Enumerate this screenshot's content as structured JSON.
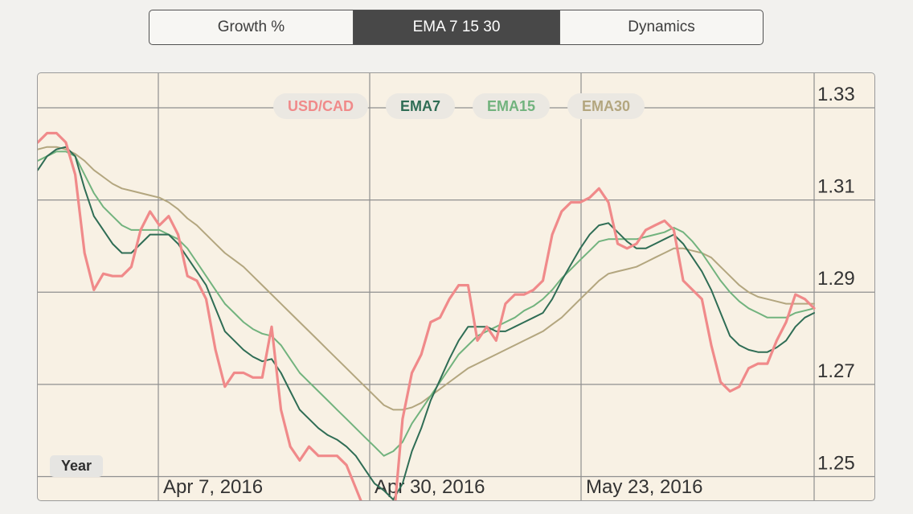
{
  "tabs": [
    {
      "label": "Growth %",
      "active": false
    },
    {
      "label": "EMA 7 15 30",
      "active": true
    },
    {
      "label": "Dynamics",
      "active": false
    }
  ],
  "period_button": "Year",
  "colors": {
    "usdcad": "#f08a8a",
    "ema7": "#2f6d55",
    "ema15": "#72b37e",
    "ema30": "#b3a67f",
    "grid": "#8f8f8f",
    "plot_bg": "#f8f1e4"
  },
  "chart_data": {
    "type": "line",
    "x_ticks": [
      "Apr 7, 2016",
      "Apr 30, 2016",
      "May 23, 2016"
    ],
    "y_ticks": [
      1.25,
      1.27,
      1.29,
      1.31,
      1.33
    ],
    "ylim": [
      1.2445,
      1.3375
    ],
    "grid": true,
    "legend_placement": "top-center",
    "series": [
      {
        "name": "USD/CAD",
        "color_key": "usdcad",
        "values": [
          1.3225,
          1.3245,
          1.3245,
          1.3225,
          1.3155,
          1.2985,
          1.2905,
          1.294,
          1.2935,
          1.2935,
          1.2955,
          1.3035,
          1.3075,
          1.3045,
          1.3065,
          1.3025,
          1.2935,
          1.2925,
          1.2885,
          1.2775,
          1.2695,
          1.2725,
          1.2725,
          1.2715,
          1.2715,
          1.2825,
          1.2645,
          1.2565,
          1.2535,
          1.2565,
          1.2545,
          1.2545,
          1.2545,
          1.2525,
          1.2475,
          1.2425,
          1.2425,
          1.2425,
          1.2395,
          1.2625,
          1.2725,
          1.2765,
          1.2835,
          1.2845,
          1.2885,
          1.2915,
          1.2915,
          1.2795,
          1.2825,
          1.2795,
          1.2875,
          1.2895,
          1.2895,
          1.2905,
          1.2925,
          1.3025,
          1.3075,
          1.3095,
          1.3095,
          1.3105,
          1.3125,
          1.3095,
          1.3005,
          1.2995,
          1.3005,
          1.3035,
          1.3045,
          1.3055,
          1.3035,
          1.2925,
          1.2905,
          1.2885,
          1.2785,
          1.2705,
          1.2685,
          1.2695,
          1.2735,
          1.2745,
          1.2745,
          1.2795,
          1.2835,
          1.2895,
          1.2885,
          1.2865
        ]
      },
      {
        "name": "EMA7",
        "color_key": "ema7",
        "values": [
          1.3165,
          1.3195,
          1.321,
          1.3215,
          1.3195,
          1.3125,
          1.3065,
          1.3035,
          1.3005,
          1.2985,
          1.2985,
          1.3005,
          1.3025,
          1.3025,
          1.3025,
          1.3005,
          1.2975,
          1.2945,
          1.2915,
          1.2865,
          1.2815,
          1.2795,
          1.2775,
          1.276,
          1.275,
          1.2755,
          1.2725,
          1.2685,
          1.2645,
          1.2625,
          1.2605,
          1.259,
          1.258,
          1.2565,
          1.2545,
          1.2515,
          1.2485,
          1.247,
          1.245,
          1.2485,
          1.2555,
          1.2605,
          1.2665,
          1.271,
          1.2755,
          1.2795,
          1.2825,
          1.2825,
          1.2825,
          1.2815,
          1.2815,
          1.2825,
          1.2835,
          1.2845,
          1.2855,
          1.2885,
          1.2925,
          1.296,
          1.2995,
          1.3025,
          1.3045,
          1.305,
          1.303,
          1.301,
          1.2995,
          1.2995,
          1.3005,
          1.3015,
          1.3025,
          1.3005,
          1.2975,
          1.2945,
          1.2905,
          1.2855,
          1.2805,
          1.2785,
          1.2775,
          1.277,
          1.277,
          1.278,
          1.2795,
          1.2825,
          1.2845,
          1.2855
        ]
      },
      {
        "name": "EMA15",
        "color_key": "ema15",
        "values": [
          1.3185,
          1.3195,
          1.3205,
          1.3205,
          1.3195,
          1.3155,
          1.3115,
          1.3085,
          1.3065,
          1.3045,
          1.3035,
          1.3035,
          1.3035,
          1.3035,
          1.3025,
          1.3015,
          1.2995,
          1.2965,
          1.2935,
          1.2905,
          1.2875,
          1.2855,
          1.2835,
          1.282,
          1.281,
          1.2805,
          1.2785,
          1.2755,
          1.2725,
          1.2705,
          1.2685,
          1.2665,
          1.2645,
          1.2625,
          1.2605,
          1.2585,
          1.2565,
          1.2545,
          1.2555,
          1.2575,
          1.2615,
          1.2645,
          1.2675,
          1.2705,
          1.2735,
          1.2765,
          1.2785,
          1.2805,
          1.2815,
          1.2825,
          1.2835,
          1.2845,
          1.286,
          1.287,
          1.2885,
          1.2905,
          1.293,
          1.295,
          1.297,
          1.299,
          1.301,
          1.3015,
          1.3015,
          1.3015,
          1.3015,
          1.302,
          1.3025,
          1.303,
          1.304,
          1.303,
          1.301,
          1.2985,
          1.2955,
          1.2925,
          1.29,
          1.288,
          1.2865,
          1.2855,
          1.2845,
          1.2845,
          1.2845,
          1.2855,
          1.286,
          1.2865
        ]
      },
      {
        "name": "EMA30",
        "color_key": "ema30",
        "values": [
          1.321,
          1.3215,
          1.3215,
          1.321,
          1.32,
          1.3185,
          1.3165,
          1.315,
          1.3135,
          1.3125,
          1.312,
          1.3115,
          1.311,
          1.3105,
          1.3095,
          1.308,
          1.306,
          1.3045,
          1.3025,
          1.3005,
          1.2985,
          1.297,
          1.2955,
          1.2935,
          1.2915,
          1.2895,
          1.2875,
          1.2855,
          1.2835,
          1.2815,
          1.2795,
          1.2775,
          1.2755,
          1.2735,
          1.2715,
          1.2695,
          1.2675,
          1.2655,
          1.2645,
          1.2645,
          1.265,
          1.266,
          1.2675,
          1.269,
          1.2705,
          1.272,
          1.2735,
          1.2745,
          1.2755,
          1.2765,
          1.2775,
          1.2785,
          1.2795,
          1.2805,
          1.2815,
          1.283,
          1.2845,
          1.2865,
          1.2885,
          1.2905,
          1.2925,
          1.294,
          1.2945,
          1.295,
          1.2955,
          1.2965,
          1.2975,
          1.2985,
          1.2995,
          1.2995,
          1.299,
          1.2985,
          1.2975,
          1.2955,
          1.2935,
          1.2915,
          1.29,
          1.289,
          1.2885,
          1.288,
          1.2875,
          1.2875,
          1.2875,
          1.2875
        ]
      }
    ]
  }
}
